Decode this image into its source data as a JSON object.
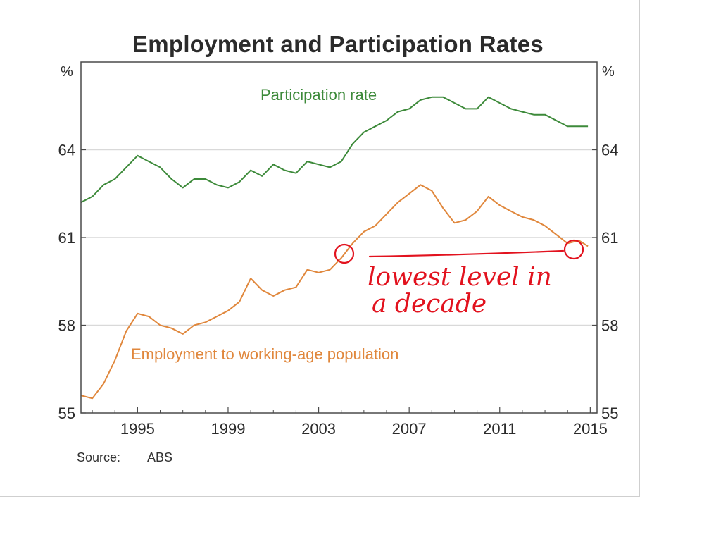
{
  "chart_data": {
    "type": "line",
    "title": "Employment and Participation Rates",
    "ylabel_left": "%",
    "ylabel_right": "%",
    "ylim": [
      55,
      67
    ],
    "yticks": [
      55,
      58,
      61,
      64
    ],
    "xlim": [
      1992.5,
      2015.3
    ],
    "xticks": [
      1995,
      1999,
      2003,
      2007,
      2011,
      2015
    ],
    "grid": "horizontal",
    "source_label": "Source:",
    "source_value": "ABS",
    "series": [
      {
        "name": "Participation rate",
        "color": "#3d8a3a",
        "points": [
          [
            1992.5,
            62.2
          ],
          [
            1993.0,
            62.4
          ],
          [
            1993.5,
            62.8
          ],
          [
            1994.0,
            63.0
          ],
          [
            1994.5,
            63.4
          ],
          [
            1995.0,
            63.8
          ],
          [
            1995.5,
            63.6
          ],
          [
            1996.0,
            63.4
          ],
          [
            1996.5,
            63.0
          ],
          [
            1997.0,
            62.7
          ],
          [
            1997.5,
            63.0
          ],
          [
            1998.0,
            63.0
          ],
          [
            1998.5,
            62.8
          ],
          [
            1999.0,
            62.7
          ],
          [
            1999.5,
            62.9
          ],
          [
            2000.0,
            63.3
          ],
          [
            2000.5,
            63.1
          ],
          [
            2001.0,
            63.5
          ],
          [
            2001.5,
            63.3
          ],
          [
            2002.0,
            63.2
          ],
          [
            2002.5,
            63.6
          ],
          [
            2003.0,
            63.5
          ],
          [
            2003.5,
            63.4
          ],
          [
            2004.0,
            63.6
          ],
          [
            2004.5,
            64.2
          ],
          [
            2005.0,
            64.6
          ],
          [
            2005.5,
            64.8
          ],
          [
            2006.0,
            65.0
          ],
          [
            2006.5,
            65.3
          ],
          [
            2007.0,
            65.4
          ],
          [
            2007.5,
            65.7
          ],
          [
            2008.0,
            65.8
          ],
          [
            2008.5,
            65.8
          ],
          [
            2009.0,
            65.6
          ],
          [
            2009.5,
            65.4
          ],
          [
            2010.0,
            65.4
          ],
          [
            2010.5,
            65.8
          ],
          [
            2011.0,
            65.6
          ],
          [
            2011.5,
            65.4
          ],
          [
            2012.0,
            65.3
          ],
          [
            2012.5,
            65.2
          ],
          [
            2013.0,
            65.2
          ],
          [
            2013.5,
            65.0
          ],
          [
            2014.0,
            64.8
          ],
          [
            2014.5,
            64.8
          ],
          [
            2014.9,
            64.8
          ]
        ]
      },
      {
        "name": "Employment to working-age population",
        "color": "#e0873c",
        "points": [
          [
            1992.5,
            55.6
          ],
          [
            1993.0,
            55.5
          ],
          [
            1993.5,
            56.0
          ],
          [
            1994.0,
            56.8
          ],
          [
            1994.5,
            57.8
          ],
          [
            1995.0,
            58.4
          ],
          [
            1995.5,
            58.3
          ],
          [
            1996.0,
            58.0
          ],
          [
            1996.5,
            57.9
          ],
          [
            1997.0,
            57.7
          ],
          [
            1997.5,
            58.0
          ],
          [
            1998.0,
            58.1
          ],
          [
            1998.5,
            58.3
          ],
          [
            1999.0,
            58.5
          ],
          [
            1999.5,
            58.8
          ],
          [
            2000.0,
            59.6
          ],
          [
            2000.5,
            59.2
          ],
          [
            2001.0,
            59.0
          ],
          [
            2001.5,
            59.2
          ],
          [
            2002.0,
            59.3
          ],
          [
            2002.5,
            59.9
          ],
          [
            2003.0,
            59.8
          ],
          [
            2003.5,
            59.9
          ],
          [
            2004.0,
            60.3
          ],
          [
            2004.5,
            60.8
          ],
          [
            2005.0,
            61.2
          ],
          [
            2005.5,
            61.4
          ],
          [
            2006.0,
            61.8
          ],
          [
            2006.5,
            62.2
          ],
          [
            2007.0,
            62.5
          ],
          [
            2007.5,
            62.8
          ],
          [
            2008.0,
            62.6
          ],
          [
            2008.5,
            62.0
          ],
          [
            2009.0,
            61.5
          ],
          [
            2009.5,
            61.6
          ],
          [
            2010.0,
            61.9
          ],
          [
            2010.5,
            62.4
          ],
          [
            2011.0,
            62.1
          ],
          [
            2011.5,
            61.9
          ],
          [
            2012.0,
            61.7
          ],
          [
            2012.5,
            61.6
          ],
          [
            2013.0,
            61.4
          ],
          [
            2013.5,
            61.1
          ],
          [
            2014.0,
            60.8
          ],
          [
            2014.5,
            60.9
          ],
          [
            2014.9,
            60.7
          ]
        ]
      }
    ],
    "handwritten_annotation": [
      "lowest level in",
      "a decade"
    ],
    "annotation_color": "#e2121e"
  }
}
